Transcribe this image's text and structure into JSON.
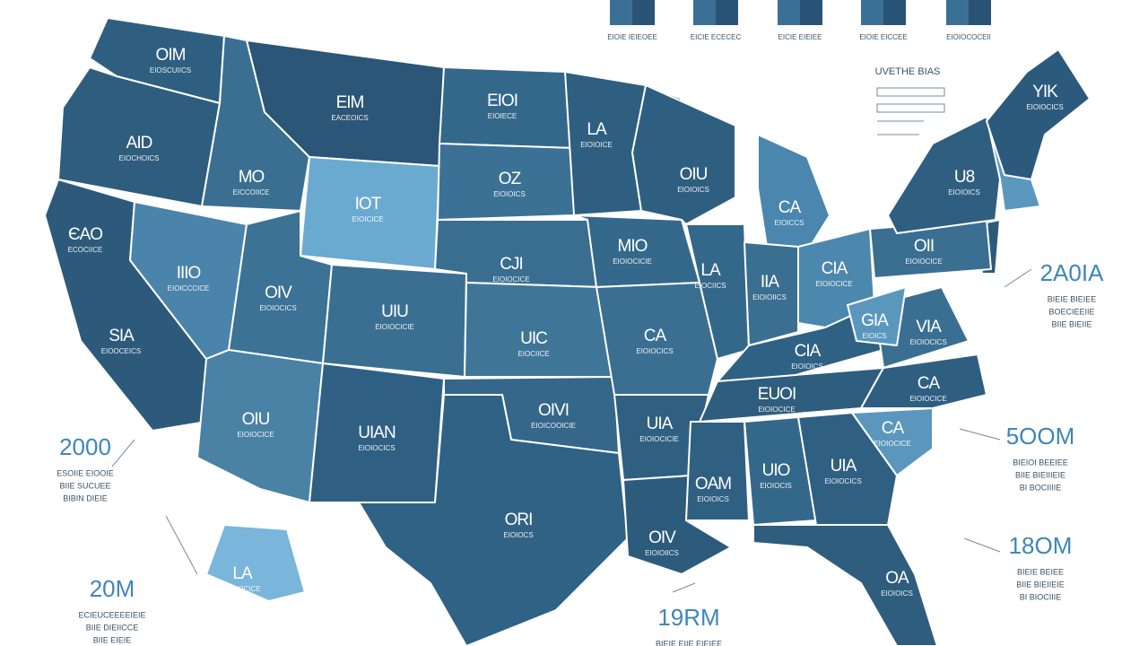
{
  "legend": {
    "title": "UVETHE BIAS"
  },
  "top_bars": [
    {
      "label": "EIOIE IEIEOEE"
    },
    {
      "label": "EICIE ECECEC"
    },
    {
      "label": "EICIE EIEIEE"
    },
    {
      "label": "EIOIE EICCEE"
    },
    {
      "label": "EIOIOCOCEII"
    }
  ],
  "states": [
    {
      "label": "OIM",
      "sub": "EIOSCUIICS"
    },
    {
      "label": "AID",
      "sub": "EIOCHOICS"
    },
    {
      "label": "ЄAO",
      "sub": "ECOCIICE"
    },
    {
      "label": "SIA",
      "sub": "EIOOCEICS"
    },
    {
      "label": "MO",
      "sub": "EICCOIICE"
    },
    {
      "label": "IIIO",
      "sub": "EIOICCCICE"
    },
    {
      "label": "EIM",
      "sub": "EACEOICS"
    },
    {
      "label": "IOT",
      "sub": "EIOICICE"
    },
    {
      "label": "OIV",
      "sub": "EIOIOCICS"
    },
    {
      "label": "UIU",
      "sub": "EIOIOCICIE"
    },
    {
      "label": "OIU",
      "sub": "EIOIOCICE"
    },
    {
      "label": "UIAN",
      "sub": "EIOIOCICS"
    },
    {
      "label": "EIOI",
      "sub": "EIOIECE"
    },
    {
      "label": "OZ",
      "sub": "EIOIOICS"
    },
    {
      "label": "CJI",
      "sub": "EIOIOCICE"
    },
    {
      "label": "UIC",
      "sub": "EIOCIICE"
    },
    {
      "label": "OIVI",
      "sub": "EIOICOOICIE"
    },
    {
      "label": "ORI",
      "sub": "EIOIOCS"
    },
    {
      "label": "LA",
      "sub": "EIOIOICE"
    },
    {
      "label": "MIO",
      "sub": "EIOIOCICIE"
    },
    {
      "label": "CA",
      "sub": "EIOIOCICS"
    },
    {
      "label": "UIA",
      "sub": "EIOIOCICIE"
    },
    {
      "label": "OIV",
      "sub": "EIOIOIICS"
    },
    {
      "label": "OIU",
      "sub": "EIOIOICS"
    },
    {
      "label": "LA",
      "sub": "EIOCIICS"
    },
    {
      "label": "CA",
      "sub": "EIOICCS"
    },
    {
      "label": "IIA",
      "sub": "EIOIOIICS"
    },
    {
      "label": "CIA",
      "sub": "EIOIOCICE"
    },
    {
      "label": "CIA",
      "sub": "EIOIOICS"
    },
    {
      "label": "EUOI",
      "sub": "EIOIOCICE"
    },
    {
      "label": "OAM",
      "sub": "EIOIOICS"
    },
    {
      "label": "UIO",
      "sub": "EIOIOCIS"
    },
    {
      "label": "UIA",
      "sub": "EIOIOCICS"
    },
    {
      "label": "OA",
      "sub": "EIOIOICS"
    },
    {
      "label": "CA",
      "sub": "EIOIOCICE"
    },
    {
      "label": "CA",
      "sub": "EIOIOCICE"
    },
    {
      "label": "VIA",
      "sub": "EIOIOCICS"
    },
    {
      "label": "GIA",
      "sub": "EIOICS"
    },
    {
      "label": "OII",
      "sub": "EIOIOCICE"
    },
    {
      "label": "U8",
      "sub": "EIOIOICS"
    },
    {
      "label": "YIK",
      "sub": "EIOIOCICS"
    },
    {
      "label": "LA",
      "sub": "EIOIOCICE"
    }
  ],
  "callouts": [
    {
      "value": "2000",
      "lines": [
        "ESOIIE EIOOIE",
        "BIIE SUCUEE",
        "BIBIN DIEIE"
      ]
    },
    {
      "value": "20M",
      "lines": [
        "ECIEUCEEEEIEIE",
        "BIIE DIEIICCE",
        "BIIE EIEIE"
      ]
    },
    {
      "value": "5OOM",
      "lines": [
        "BIEIOI BEEIEE",
        "BIIE BIEIIIEIE",
        "BI BOCIIIIE"
      ]
    },
    {
      "value": "18OM",
      "lines": [
        "BIEIE BEIEE",
        "BIIE BIEIIEIE",
        "BI BIOCIIIE"
      ]
    },
    {
      "value": "2A0IA",
      "lines": [
        "BIEIE BIEIEE",
        "BOECIEEIIE",
        "BIIE BIEIIE"
      ]
    },
    {
      "value": "19RM",
      "lines": [
        "BIEIE EIIE EIEIEE"
      ]
    }
  ]
}
